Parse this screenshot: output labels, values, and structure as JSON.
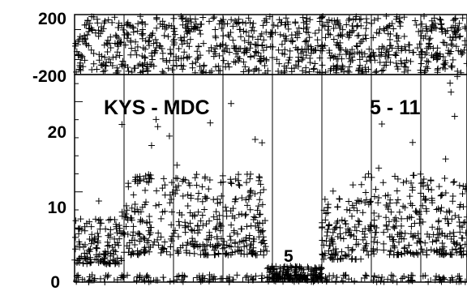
{
  "chart_data": [
    {
      "type": "scatter",
      "panel": "upper",
      "ylim": [
        -200,
        200
      ],
      "y_ticks": [
        {
          "value": 200,
          "label": "200"
        },
        {
          "value": -200,
          "label": "-200"
        }
      ],
      "grid": true,
      "marker": "+",
      "note": "dense scatter filling the whole range",
      "x_range": [
        0,
        1
      ]
    },
    {
      "type": "scatter",
      "panel": "lower",
      "ylim": [
        0,
        23
      ],
      "y_ticks": [
        {
          "value": 0,
          "label": "0"
        },
        {
          "value": 10,
          "label": "10"
        },
        {
          "value": 20,
          "label": "20"
        }
      ],
      "grid": true,
      "marker": "+",
      "annotations": [
        "KYS - MDC",
        "5 - 11",
        "5"
      ],
      "x_range": [
        0,
        1
      ],
      "segments": [
        {
          "x": [
            0.0,
            0.12
          ],
          "base": 2,
          "amp": 5,
          "spike": 8
        },
        {
          "x": [
            0.12,
            0.49
          ],
          "base": 3,
          "amp": 9,
          "spike": 17
        },
        {
          "x": [
            0.49,
            0.63
          ],
          "base": 0.3,
          "amp": 1.5,
          "spike": 2.5
        },
        {
          "x": [
            0.63,
            0.74
          ],
          "base": 2.5,
          "amp": 7,
          "spike": 12
        },
        {
          "x": [
            0.74,
            1.0
          ],
          "base": 3,
          "amp": 9,
          "spike": 21
        }
      ]
    }
  ]
}
